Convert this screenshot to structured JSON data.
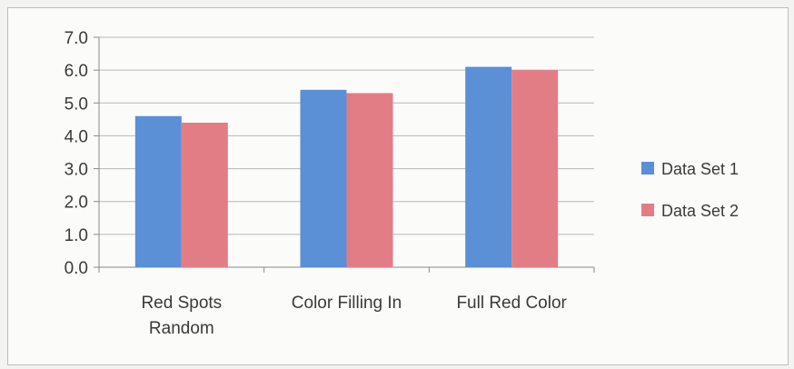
{
  "chart_data": {
    "type": "bar",
    "title": "",
    "xlabel": "",
    "ylabel": "",
    "categories": [
      "Red Spots Random",
      "Color Filling In",
      "Full Red Color"
    ],
    "category_lines": [
      [
        "Red Spots",
        "Random"
      ],
      [
        "Color Filling In"
      ],
      [
        "Full Red Color"
      ]
    ],
    "series": [
      {
        "name": "Data Set 1",
        "values": [
          4.6,
          5.4,
          6.1
        ],
        "color": "#5b8fd6"
      },
      {
        "name": "Data Set 2",
        "values": [
          4.4,
          5.3,
          6.0
        ],
        "color": "#e27d86"
      }
    ],
    "ylim": [
      0,
      7
    ],
    "yticks": [
      "0.0",
      "1.0",
      "2.0",
      "3.0",
      "4.0",
      "5.0",
      "6.0",
      "7.0"
    ],
    "grid": true,
    "legend_position": "right"
  }
}
